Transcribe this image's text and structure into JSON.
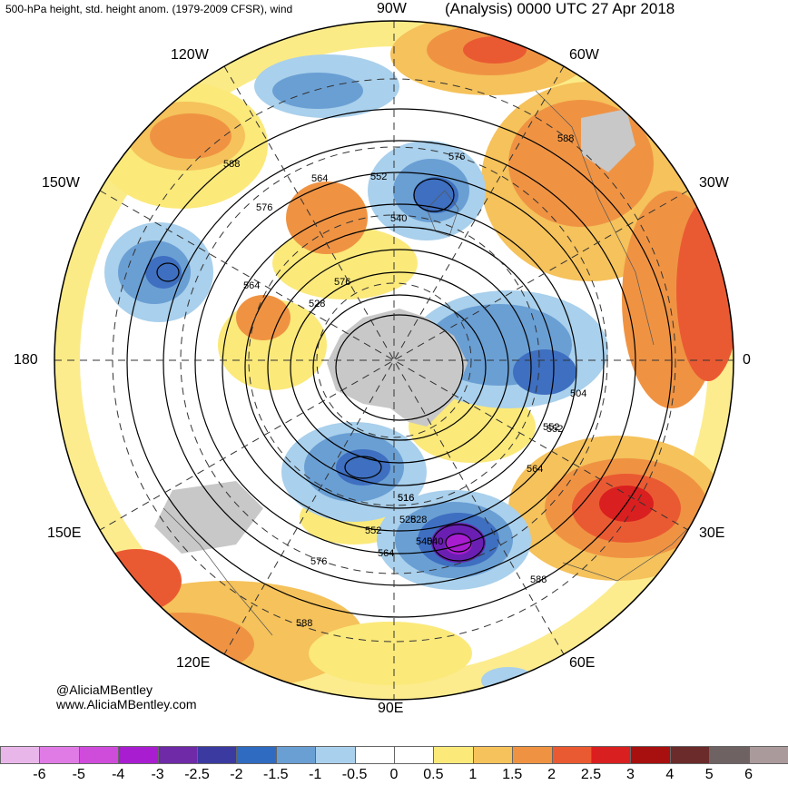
{
  "header": {
    "left_title": "500-hPa height, std. height anom. (1979-2009 CFSR), wind",
    "right_title": "(Analysis) 0000 UTC 27 Apr 2018"
  },
  "map": {
    "projection": "north-polar-stereographic",
    "longitude_labels": {
      "w90": "90W",
      "w120": "120W",
      "w60": "60W",
      "w150": "150W",
      "w30": "30W",
      "l180": "180",
      "l0": "0",
      "e150": "150E",
      "e30": "30E",
      "e120": "120E",
      "e60": "60E",
      "e90": "90E"
    },
    "contour_labels": [
      "588",
      "576",
      "564",
      "552",
      "540",
      "528",
      "516",
      "504",
      "588",
      "576",
      "564",
      "552",
      "540",
      "528",
      "516",
      "504"
    ],
    "contour_label_list": [
      "588",
      "588",
      "576",
      "576",
      "564",
      "564",
      "552",
      "552",
      "540",
      "540",
      "528",
      "528",
      "516",
      "504",
      "564",
      "552",
      "576",
      "588",
      "576",
      "564",
      "552",
      "528",
      "540",
      "516",
      "588"
    ],
    "colors": {
      "land": "#c8c8c8",
      "neutral": "#ffffff",
      "positive_1": "#fbe97a",
      "positive_1_5": "#f5c25b",
      "positive_2": "#ef9343",
      "positive_2_5": "#ea5a32",
      "positive_3": "#d91f1f",
      "negative_0_5": "#a9d0ec",
      "negative_1": "#6a9fd4",
      "negative_1_5": "#3e6fc0",
      "negative_2_5": "#6a1fb2"
    }
  },
  "credit": {
    "handle": "@AliciaMBentley",
    "site": "www.AliciaMBentley.com"
  },
  "colorbar": {
    "colors": [
      "#e9b6ea",
      "#e07be6",
      "#cf4cdb",
      "#a91dd0",
      "#6f2aa8",
      "#3b3aa0",
      "#2f6bc0",
      "#6a9fd4",
      "#a9d0ec",
      "#ffffff",
      "#ffffff",
      "#fbe97a",
      "#f5c25b",
      "#ef9343",
      "#ea5a32",
      "#d91f1f",
      "#a80f0f",
      "#6b2b2b",
      "#6e6263",
      "#aa9a9b"
    ],
    "ticks": [
      "-6",
      "-5",
      "-4",
      "-3",
      "-2.5",
      "-2",
      "-1.5",
      "-1",
      "-0.5",
      "0",
      "0.5",
      "1",
      "1.5",
      "2",
      "2.5",
      "3",
      "4",
      "5",
      "6"
    ]
  }
}
